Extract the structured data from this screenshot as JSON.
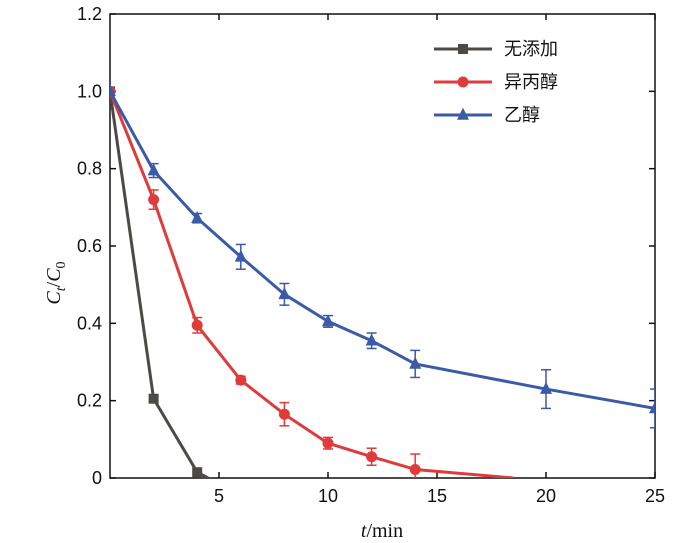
{
  "chart_data": {
    "type": "line",
    "title": "",
    "xlabel_italic": "t",
    "xlabel_unit": "/min",
    "ylabel_main": "C",
    "ylabel_sub1": "t",
    "ylabel_sep": "/",
    "ylabel_sub0": "0",
    "xlim": [
      0,
      25
    ],
    "ylim": [
      0,
      1.2
    ],
    "x_ticks": [
      5,
      10,
      15,
      20,
      25
    ],
    "x_tick_labels": [
      "5",
      "10",
      "15",
      "20",
      "25"
    ],
    "y_ticks": [
      0,
      0.2,
      0.4,
      0.6,
      0.8,
      1.0,
      1.2
    ],
    "y_tick_labels": [
      "0",
      "0.2",
      "0.4",
      "0.6",
      "0.8",
      "1.0",
      "1.2"
    ],
    "grid": false,
    "legend_position": "top-right",
    "series": [
      {
        "name": "无添加",
        "color": "#4d4a46",
        "marker": "square",
        "x": [
          0,
          2,
          4,
          4.5
        ],
        "y": [
          1.0,
          0.205,
          0.015,
          0.0
        ],
        "err": [
          0,
          0,
          0,
          0
        ]
      },
      {
        "name": "异丙醇",
        "color": "#e03b3b",
        "marker": "circle",
        "x": [
          0,
          2,
          4,
          6,
          8,
          10,
          12,
          14,
          18.5
        ],
        "y": [
          1.0,
          0.72,
          0.395,
          0.253,
          0.165,
          0.09,
          0.055,
          0.022,
          0.0
        ],
        "err": [
          0,
          0.025,
          0.02,
          0.01,
          0.03,
          0.015,
          0.022,
          0.04,
          0
        ]
      },
      {
        "name": "乙醇",
        "color": "#3b5aa8",
        "marker": "triangle",
        "x": [
          0,
          2,
          4,
          6,
          8,
          10,
          12,
          14,
          20,
          25
        ],
        "y": [
          1.0,
          0.795,
          0.672,
          0.572,
          0.475,
          0.405,
          0.355,
          0.295,
          0.23,
          0.18
        ],
        "err": [
          0,
          0.018,
          0.012,
          0.032,
          0.028,
          0.015,
          0.02,
          0.035,
          0.05,
          0.05
        ]
      }
    ]
  }
}
